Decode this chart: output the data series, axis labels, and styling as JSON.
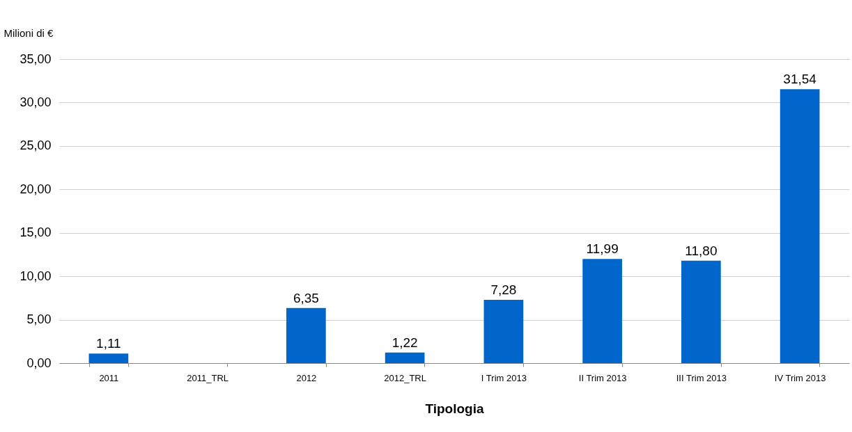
{
  "chart_data": {
    "type": "bar",
    "xlabel": "Tipologia",
    "ylabel": "Milioni di €",
    "categories": [
      "2011",
      "2011_TRL",
      "2012",
      "2012_TRL",
      "I Trim 2013",
      "II Trim 2013",
      "III Trim 2013",
      "IV Trim 2013"
    ],
    "values": [
      1.11,
      null,
      6.35,
      1.22,
      7.28,
      11.99,
      11.8,
      31.54
    ],
    "value_labels": [
      "1,11",
      null,
      "6,35",
      "1,22",
      "7,28",
      "11,99",
      "11,80",
      "31,54"
    ],
    "color": "#0066cc",
    "ylim": [
      0,
      35
    ],
    "yticks": [
      {
        "value": 0,
        "label": "0,00"
      },
      {
        "value": 5,
        "label": "5,00"
      },
      {
        "value": 10,
        "label": "10,00"
      },
      {
        "value": 15,
        "label": "15,00"
      },
      {
        "value": 20,
        "label": "20,00"
      },
      {
        "value": 25,
        "label": "25,00"
      },
      {
        "value": 30,
        "label": "30,00"
      },
      {
        "value": 35,
        "label": "35,00"
      }
    ],
    "grid": "y"
  }
}
